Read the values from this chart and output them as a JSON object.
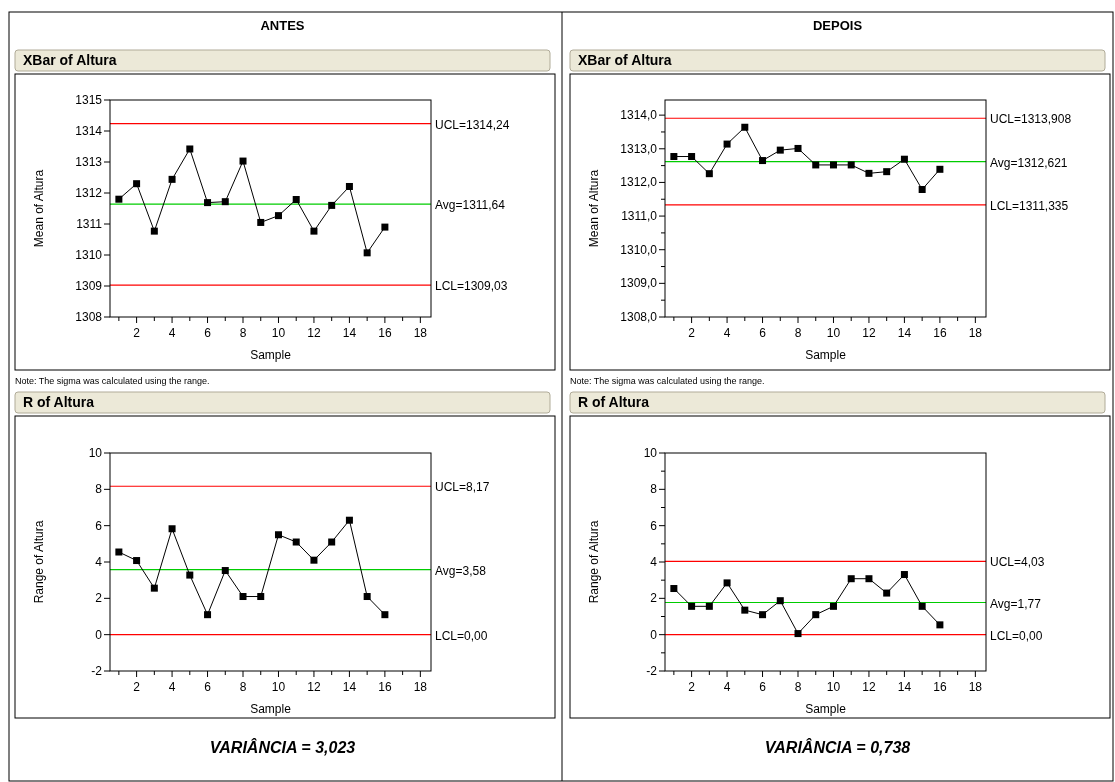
{
  "chart_data": [
    {
      "type": "line",
      "title": "XBar of Altura",
      "xlabel": "Sample",
      "ylabel": "Mean of Altura",
      "annotations": [
        "ANTES",
        "Note: The sigma was calculated using the range."
      ],
      "marker": "square",
      "line_style": "solid",
      "grid": false,
      "x": [
        1,
        2,
        3,
        4,
        5,
        6,
        7,
        8,
        9,
        10,
        11,
        12,
        13,
        14,
        15,
        16
      ],
      "series": [
        {
          "color": "#000000",
          "values": [
            1311.8,
            1312.3,
            1310.77,
            1312.44,
            1313.42,
            1311.69,
            1311.72,
            1313.03,
            1311.05,
            1311.27,
            1311.79,
            1310.77,
            1311.6,
            1312.21,
            1310.07,
            1310.9
          ]
        }
      ],
      "xlim": [
        0.5,
        18.6
      ],
      "xticks": [
        {
          "value": 1,
          "label": null
        },
        2,
        {
          "value": 3,
          "label": null
        },
        4,
        {
          "value": 5,
          "label": null
        },
        6,
        {
          "value": 7,
          "label": null
        },
        8,
        {
          "value": 9,
          "label": null
        },
        10,
        {
          "value": 11,
          "label": null
        },
        12,
        {
          "value": 13,
          "label": null
        },
        14,
        {
          "value": 15,
          "label": null
        },
        16,
        {
          "value": 17,
          "label": null
        },
        18
      ],
      "ylim": [
        1308,
        1315
      ],
      "yticks": [
        1308,
        1309,
        1310,
        1311,
        1312,
        1313,
        1314,
        1315
      ],
      "ref_lines": [
        {
          "axis": "y",
          "value": 1314.24,
          "label": "UCL=1314,24",
          "color": "#ff0000"
        },
        {
          "axis": "y",
          "value": 1311.64,
          "label": "Avg=1311,64",
          "color": "#00cc00"
        },
        {
          "axis": "y",
          "value": 1309.03,
          "label": "LCL=1309,03",
          "color": "#ff0000"
        }
      ]
    },
    {
      "type": "line",
      "title": "XBar of Altura",
      "xlabel": "Sample",
      "ylabel": "Mean of Altura",
      "annotations": [
        "DEPOIS",
        "Note: The sigma was calculated using the range."
      ],
      "marker": "square",
      "line_style": "solid",
      "grid": false,
      "x": [
        1,
        2,
        3,
        4,
        5,
        6,
        7,
        8,
        9,
        10,
        11,
        12,
        13,
        14,
        15,
        16
      ],
      "series": [
        {
          "color": "#000000",
          "values": [
            1312.77,
            1312.77,
            1312.26,
            1313.14,
            1313.64,
            1312.65,
            1312.96,
            1313.01,
            1312.52,
            1312.52,
            1312.52,
            1312.27,
            1312.32,
            1312.69,
            1311.79,
            1312.39
          ]
        }
      ],
      "xlim": [
        0.5,
        18.6
      ],
      "xticks": [
        {
          "value": 1,
          "label": null
        },
        2,
        {
          "value": 3,
          "label": null
        },
        4,
        {
          "value": 5,
          "label": null
        },
        6,
        {
          "value": 7,
          "label": null
        },
        8,
        {
          "value": 9,
          "label": null
        },
        10,
        {
          "value": 11,
          "label": null
        },
        12,
        {
          "value": 13,
          "label": null
        },
        14,
        {
          "value": 15,
          "label": null
        },
        16,
        {
          "value": 17,
          "label": null
        },
        18
      ],
      "ylim": [
        1308,
        1314.45
      ],
      "yticks": [
        {
          "value": 1308,
          "label": "1308,0"
        },
        {
          "value": 1308.5,
          "label": null
        },
        {
          "value": 1309,
          "label": "1309,0"
        },
        {
          "value": 1309.5,
          "label": null
        },
        {
          "value": 1310,
          "label": "1310,0"
        },
        {
          "value": 1310.5,
          "label": null
        },
        {
          "value": 1311,
          "label": "1311,0"
        },
        {
          "value": 1311.5,
          "label": null
        },
        {
          "value": 1312,
          "label": "1312,0"
        },
        {
          "value": 1312.5,
          "label": null
        },
        {
          "value": 1313,
          "label": "1313,0"
        },
        {
          "value": 1313.5,
          "label": null
        },
        {
          "value": 1314,
          "label": "1314,0"
        }
      ],
      "ref_lines": [
        {
          "axis": "y",
          "value": 1313.908,
          "label": "UCL=1313,908",
          "color": "#ff0000"
        },
        {
          "axis": "y",
          "value": 1312.621,
          "label": "Avg=1312,621",
          "color": "#00cc00"
        },
        {
          "axis": "y",
          "value": 1311.335,
          "label": "LCL=1311,335",
          "color": "#ff0000"
        }
      ]
    },
    {
      "type": "line",
      "title": "R of Altura",
      "xlabel": "Sample",
      "ylabel": "Range of Altura",
      "annotations": [
        "VARIÂNCIA = 3,023"
      ],
      "marker": "square",
      "line_style": "solid",
      "grid": false,
      "x": [
        1,
        2,
        3,
        4,
        5,
        6,
        7,
        8,
        9,
        10,
        11,
        12,
        13,
        14,
        15,
        16
      ],
      "series": [
        {
          "color": "#000000",
          "values": [
            4.55,
            4.08,
            2.56,
            5.83,
            3.28,
            1.1,
            3.53,
            2.1,
            2.1,
            5.5,
            5.1,
            4.1,
            5.1,
            6.3,
            2.1,
            1.1
          ]
        }
      ],
      "xlim": [
        0.5,
        18.6
      ],
      "xticks": [
        {
          "value": 1,
          "label": null
        },
        2,
        {
          "value": 3,
          "label": null
        },
        4,
        {
          "value": 5,
          "label": null
        },
        6,
        {
          "value": 7,
          "label": null
        },
        8,
        {
          "value": 9,
          "label": null
        },
        10,
        {
          "value": 11,
          "label": null
        },
        12,
        {
          "value": 13,
          "label": null
        },
        14,
        {
          "value": 15,
          "label": null
        },
        16,
        {
          "value": 17,
          "label": null
        },
        18
      ],
      "ylim": [
        -2,
        10
      ],
      "yticks": [
        -2,
        0,
        2,
        4,
        6,
        8,
        10
      ],
      "ref_lines": [
        {
          "axis": "y",
          "value": 8.17,
          "label": "UCL=8,17",
          "color": "#ff0000"
        },
        {
          "axis": "y",
          "value": 3.58,
          "label": "Avg=3,58",
          "color": "#00cc00"
        },
        {
          "axis": "y",
          "value": 0,
          "label": "LCL=0,00",
          "color": "#ff0000"
        }
      ]
    },
    {
      "type": "line",
      "title": "R of Altura",
      "xlabel": "Sample",
      "ylabel": "Range of Altura",
      "annotations": [
        "VARIÂNCIA = 0,738"
      ],
      "marker": "square",
      "line_style": "solid",
      "grid": false,
      "x": [
        1,
        2,
        3,
        4,
        5,
        6,
        7,
        8,
        9,
        10,
        11,
        12,
        13,
        14,
        15,
        16
      ],
      "series": [
        {
          "color": "#000000",
          "values": [
            2.54,
            1.56,
            1.56,
            2.85,
            1.35,
            1.1,
            1.87,
            0.06,
            1.1,
            1.56,
            3.08,
            3.08,
            2.29,
            3.31,
            1.56,
            0.54
          ]
        }
      ],
      "xlim": [
        0.5,
        18.6
      ],
      "xticks": [
        {
          "value": 1,
          "label": null
        },
        2,
        {
          "value": 3,
          "label": null
        },
        4,
        {
          "value": 5,
          "label": null
        },
        6,
        {
          "value": 7,
          "label": null
        },
        8,
        {
          "value": 9,
          "label": null
        },
        10,
        {
          "value": 11,
          "label": null
        },
        12,
        {
          "value": 13,
          "label": null
        },
        14,
        {
          "value": 15,
          "label": null
        },
        16,
        {
          "value": 17,
          "label": null
        },
        18
      ],
      "ylim": [
        -2,
        10
      ],
      "yticks": [
        -2,
        {
          "value": -1,
          "label": null
        },
        0,
        {
          "value": 1,
          "label": null
        },
        2,
        {
          "value": 3,
          "label": null
        },
        4,
        {
          "value": 5,
          "label": null
        },
        6,
        {
          "value": 7,
          "label": null
        },
        8,
        {
          "value": 9,
          "label": null
        },
        10
      ],
      "ref_lines": [
        {
          "axis": "y",
          "value": 4.03,
          "label": "UCL=4,03",
          "color": "#ff0000"
        },
        {
          "axis": "y",
          "value": 1.77,
          "label": "Avg=1,77",
          "color": "#00cc00"
        },
        {
          "axis": "y",
          "value": 0,
          "label": "LCL=0,00",
          "color": "#ff0000"
        }
      ]
    }
  ]
}
